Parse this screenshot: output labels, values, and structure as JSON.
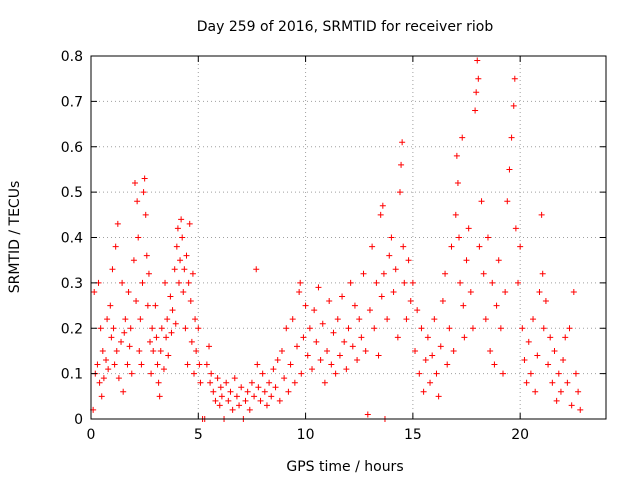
{
  "chart_data": {
    "type": "scatter",
    "title": "Day 259 of 2016, SRMTID for receiver riob",
    "xlabel": "GPS time / hours",
    "ylabel": "SRMTID / TECUs",
    "xlim": [
      0,
      24
    ],
    "ylim": [
      0,
      0.8
    ],
    "xticks": [
      0,
      5,
      10,
      15,
      20
    ],
    "yticks": [
      0,
      0.1,
      0.2,
      0.3,
      0.4,
      0.5,
      0.6,
      0.7,
      0.8
    ],
    "grid": true,
    "legend": "none",
    "marker": "+",
    "series": [
      {
        "name": "SRMTID",
        "color": "#ff0000",
        "points": [
          [
            0.1,
            0.02
          ],
          [
            0.15,
            0.28
          ],
          [
            0.2,
            0.1
          ],
          [
            0.3,
            0.12
          ],
          [
            0.35,
            0.3
          ],
          [
            0.4,
            0.08
          ],
          [
            0.45,
            0.2
          ],
          [
            0.5,
            0.05
          ],
          [
            0.55,
            0.15
          ],
          [
            0.6,
            0.09
          ],
          [
            0.7,
            0.13
          ],
          [
            0.75,
            0.22
          ],
          [
            0.8,
            0.11
          ],
          [
            0.9,
            0.25
          ],
          [
            0.95,
            0.18
          ],
          [
            1.0,
            0.33
          ],
          [
            1.05,
            0.2
          ],
          [
            1.1,
            0.12
          ],
          [
            1.15,
            0.38
          ],
          [
            1.2,
            0.15
          ],
          [
            1.25,
            0.43
          ],
          [
            1.3,
            0.09
          ],
          [
            1.4,
            0.17
          ],
          [
            1.45,
            0.3
          ],
          [
            1.5,
            0.06
          ],
          [
            1.55,
            0.19
          ],
          [
            1.6,
            0.22
          ],
          [
            1.7,
            0.12
          ],
          [
            1.75,
            0.28
          ],
          [
            1.8,
            0.16
          ],
          [
            1.85,
            0.2
          ],
          [
            1.9,
            0.1
          ],
          [
            2.0,
            0.35
          ],
          [
            2.05,
            0.52
          ],
          [
            2.1,
            0.26
          ],
          [
            2.15,
            0.48
          ],
          [
            2.2,
            0.4
          ],
          [
            2.25,
            0.15
          ],
          [
            2.3,
            0.22
          ],
          [
            2.35,
            0.12
          ],
          [
            2.4,
            0.3
          ],
          [
            2.45,
            0.5
          ],
          [
            2.5,
            0.53
          ],
          [
            2.55,
            0.45
          ],
          [
            2.6,
            0.36
          ],
          [
            2.65,
            0.25
          ],
          [
            2.7,
            0.32
          ],
          [
            2.75,
            0.17
          ],
          [
            2.8,
            0.1
          ],
          [
            2.85,
            0.2
          ],
          [
            2.9,
            0.15
          ],
          [
            3.0,
            0.25
          ],
          [
            3.05,
            0.18
          ],
          [
            3.1,
            0.12
          ],
          [
            3.15,
            0.08
          ],
          [
            3.2,
            0.05
          ],
          [
            3.25,
            0.15
          ],
          [
            3.3,
            0.2
          ],
          [
            3.4,
            0.11
          ],
          [
            3.45,
            0.3
          ],
          [
            3.5,
            0.18
          ],
          [
            3.55,
            0.22
          ],
          [
            3.6,
            0.14
          ],
          [
            3.7,
            0.27
          ],
          [
            3.75,
            0.19
          ],
          [
            3.8,
            0.24
          ],
          [
            3.9,
            0.33
          ],
          [
            3.95,
            0.21
          ],
          [
            4.0,
            0.38
          ],
          [
            4.05,
            0.42
          ],
          [
            4.1,
            0.3
          ],
          [
            4.15,
            0.35
          ],
          [
            4.2,
            0.44
          ],
          [
            4.25,
            0.4
          ],
          [
            4.3,
            0.28
          ],
          [
            4.35,
            0.33
          ],
          [
            4.4,
            0.2
          ],
          [
            4.45,
            0.36
          ],
          [
            4.5,
            0.12
          ],
          [
            4.55,
            0.3
          ],
          [
            4.6,
            0.43
          ],
          [
            4.65,
            0.26
          ],
          [
            4.7,
            0.17
          ],
          [
            4.75,
            0.32
          ],
          [
            4.8,
            0.1
          ],
          [
            4.85,
            0.22
          ],
          [
            4.9,
            0.15
          ],
          [
            5.0,
            0.2
          ],
          [
            5.05,
            0.12
          ],
          [
            5.1,
            0.08
          ],
          [
            5.2,
            0.0
          ],
          [
            5.3,
            0.0
          ],
          [
            5.4,
            0.12
          ],
          [
            5.5,
            0.16
          ],
          [
            5.55,
            0.08
          ],
          [
            5.6,
            0.1
          ],
          [
            5.7,
            0.06
          ],
          [
            5.8,
            0.04
          ],
          [
            5.9,
            0.09
          ],
          [
            6.0,
            0.03
          ],
          [
            6.05,
            0.07
          ],
          [
            6.1,
            0.05
          ],
          [
            6.2,
            0.0
          ],
          [
            6.3,
            0.08
          ],
          [
            6.4,
            0.04
          ],
          [
            6.5,
            0.06
          ],
          [
            6.6,
            0.02
          ],
          [
            6.7,
            0.09
          ],
          [
            6.8,
            0.05
          ],
          [
            6.9,
            0.03
          ],
          [
            7.0,
            0.07
          ],
          [
            7.1,
            0.0
          ],
          [
            7.2,
            0.04
          ],
          [
            7.3,
            0.06
          ],
          [
            7.4,
            0.02
          ],
          [
            7.5,
            0.08
          ],
          [
            7.6,
            0.05
          ],
          [
            7.7,
            0.33
          ],
          [
            7.75,
            0.12
          ],
          [
            7.8,
            0.07
          ],
          [
            7.9,
            0.04
          ],
          [
            8.0,
            0.1
          ],
          [
            8.1,
            0.06
          ],
          [
            8.2,
            0.03
          ],
          [
            8.3,
            0.08
          ],
          [
            8.4,
            0.05
          ],
          [
            8.5,
            0.11
          ],
          [
            8.6,
            0.07
          ],
          [
            8.7,
            0.13
          ],
          [
            8.8,
            0.04
          ],
          [
            8.9,
            0.15
          ],
          [
            9.0,
            0.09
          ],
          [
            9.1,
            0.2
          ],
          [
            9.2,
            0.06
          ],
          [
            9.3,
            0.12
          ],
          [
            9.4,
            0.22
          ],
          [
            9.5,
            0.08
          ],
          [
            9.6,
            0.16
          ],
          [
            9.7,
            0.28
          ],
          [
            9.75,
            0.3
          ],
          [
            9.8,
            0.1
          ],
          [
            9.9,
            0.18
          ],
          [
            10.0,
            0.25
          ],
          [
            10.1,
            0.14
          ],
          [
            10.2,
            0.2
          ],
          [
            10.3,
            0.11
          ],
          [
            10.4,
            0.24
          ],
          [
            10.5,
            0.17
          ],
          [
            10.6,
            0.29
          ],
          [
            10.7,
            0.13
          ],
          [
            10.8,
            0.21
          ],
          [
            10.9,
            0.08
          ],
          [
            11.0,
            0.15
          ],
          [
            11.1,
            0.26
          ],
          [
            11.2,
            0.12
          ],
          [
            11.3,
            0.19
          ],
          [
            11.4,
            0.1
          ],
          [
            11.5,
            0.22
          ],
          [
            11.6,
            0.14
          ],
          [
            11.7,
            0.27
          ],
          [
            11.8,
            0.17
          ],
          [
            11.9,
            0.11
          ],
          [
            12.0,
            0.2
          ],
          [
            12.1,
            0.3
          ],
          [
            12.2,
            0.16
          ],
          [
            12.3,
            0.25
          ],
          [
            12.4,
            0.13
          ],
          [
            12.5,
            0.22
          ],
          [
            12.6,
            0.18
          ],
          [
            12.7,
            0.32
          ],
          [
            12.8,
            0.15
          ],
          [
            12.9,
            0.01
          ],
          [
            13.0,
            0.24
          ],
          [
            13.1,
            0.38
          ],
          [
            13.2,
            0.2
          ],
          [
            13.3,
            0.3
          ],
          [
            13.4,
            0.14
          ],
          [
            13.5,
            0.45
          ],
          [
            13.55,
            0.27
          ],
          [
            13.6,
            0.47
          ],
          [
            13.65,
            0.32
          ],
          [
            13.7,
            0.0
          ],
          [
            13.8,
            0.22
          ],
          [
            13.9,
            0.36
          ],
          [
            14.0,
            0.4
          ],
          [
            14.1,
            0.28
          ],
          [
            14.2,
            0.33
          ],
          [
            14.3,
            0.18
          ],
          [
            14.4,
            0.5
          ],
          [
            14.45,
            0.56
          ],
          [
            14.5,
            0.61
          ],
          [
            14.55,
            0.38
          ],
          [
            14.6,
            0.3
          ],
          [
            14.7,
            0.22
          ],
          [
            14.8,
            0.35
          ],
          [
            14.9,
            0.26
          ],
          [
            15.0,
            0.3
          ],
          [
            15.1,
            0.15
          ],
          [
            15.2,
            0.24
          ],
          [
            15.3,
            0.1
          ],
          [
            15.4,
            0.2
          ],
          [
            15.5,
            0.06
          ],
          [
            15.6,
            0.13
          ],
          [
            15.7,
            0.18
          ],
          [
            15.8,
            0.08
          ],
          [
            15.9,
            0.14
          ],
          [
            16.0,
            0.22
          ],
          [
            16.1,
            0.1
          ],
          [
            16.2,
            0.05
          ],
          [
            16.3,
            0.16
          ],
          [
            16.4,
            0.26
          ],
          [
            16.5,
            0.32
          ],
          [
            16.6,
            0.12
          ],
          [
            16.7,
            0.2
          ],
          [
            16.8,
            0.38
          ],
          [
            16.9,
            0.15
          ],
          [
            17.0,
            0.45
          ],
          [
            17.05,
            0.58
          ],
          [
            17.1,
            0.52
          ],
          [
            17.15,
            0.4
          ],
          [
            17.2,
            0.3
          ],
          [
            17.3,
            0.62
          ],
          [
            17.35,
            0.25
          ],
          [
            17.4,
            0.18
          ],
          [
            17.5,
            0.35
          ],
          [
            17.6,
            0.42
          ],
          [
            17.7,
            0.28
          ],
          [
            17.8,
            0.2
          ],
          [
            17.9,
            0.68
          ],
          [
            17.95,
            0.72
          ],
          [
            18.0,
            0.79
          ],
          [
            18.05,
            0.75
          ],
          [
            18.1,
            0.38
          ],
          [
            18.2,
            0.48
          ],
          [
            18.3,
            0.32
          ],
          [
            18.4,
            0.22
          ],
          [
            18.5,
            0.4
          ],
          [
            18.6,
            0.15
          ],
          [
            18.7,
            0.3
          ],
          [
            18.8,
            0.12
          ],
          [
            18.9,
            0.25
          ],
          [
            19.0,
            0.35
          ],
          [
            19.1,
            0.2
          ],
          [
            19.2,
            0.1
          ],
          [
            19.3,
            0.28
          ],
          [
            19.4,
            0.48
          ],
          [
            19.5,
            0.55
          ],
          [
            19.6,
            0.62
          ],
          [
            19.7,
            0.69
          ],
          [
            19.75,
            0.75
          ],
          [
            19.8,
            0.42
          ],
          [
            19.9,
            0.3
          ],
          [
            20.0,
            0.38
          ],
          [
            20.1,
            0.2
          ],
          [
            20.2,
            0.13
          ],
          [
            20.3,
            0.08
          ],
          [
            20.4,
            0.17
          ],
          [
            20.5,
            0.1
          ],
          [
            20.6,
            0.22
          ],
          [
            20.7,
            0.06
          ],
          [
            20.8,
            0.14
          ],
          [
            20.9,
            0.28
          ],
          [
            21.0,
            0.45
          ],
          [
            21.05,
            0.32
          ],
          [
            21.1,
            0.2
          ],
          [
            21.2,
            0.26
          ],
          [
            21.3,
            0.12
          ],
          [
            21.4,
            0.18
          ],
          [
            21.5,
            0.08
          ],
          [
            21.6,
            0.15
          ],
          [
            21.7,
            0.04
          ],
          [
            21.8,
            0.1
          ],
          [
            21.9,
            0.06
          ],
          [
            22.0,
            0.13
          ],
          [
            22.1,
            0.18
          ],
          [
            22.2,
            0.08
          ],
          [
            22.3,
            0.2
          ],
          [
            22.4,
            0.03
          ],
          [
            22.5,
            0.28
          ],
          [
            22.6,
            0.1
          ],
          [
            22.7,
            0.06
          ],
          [
            22.8,
            0.02
          ]
        ]
      }
    ]
  }
}
